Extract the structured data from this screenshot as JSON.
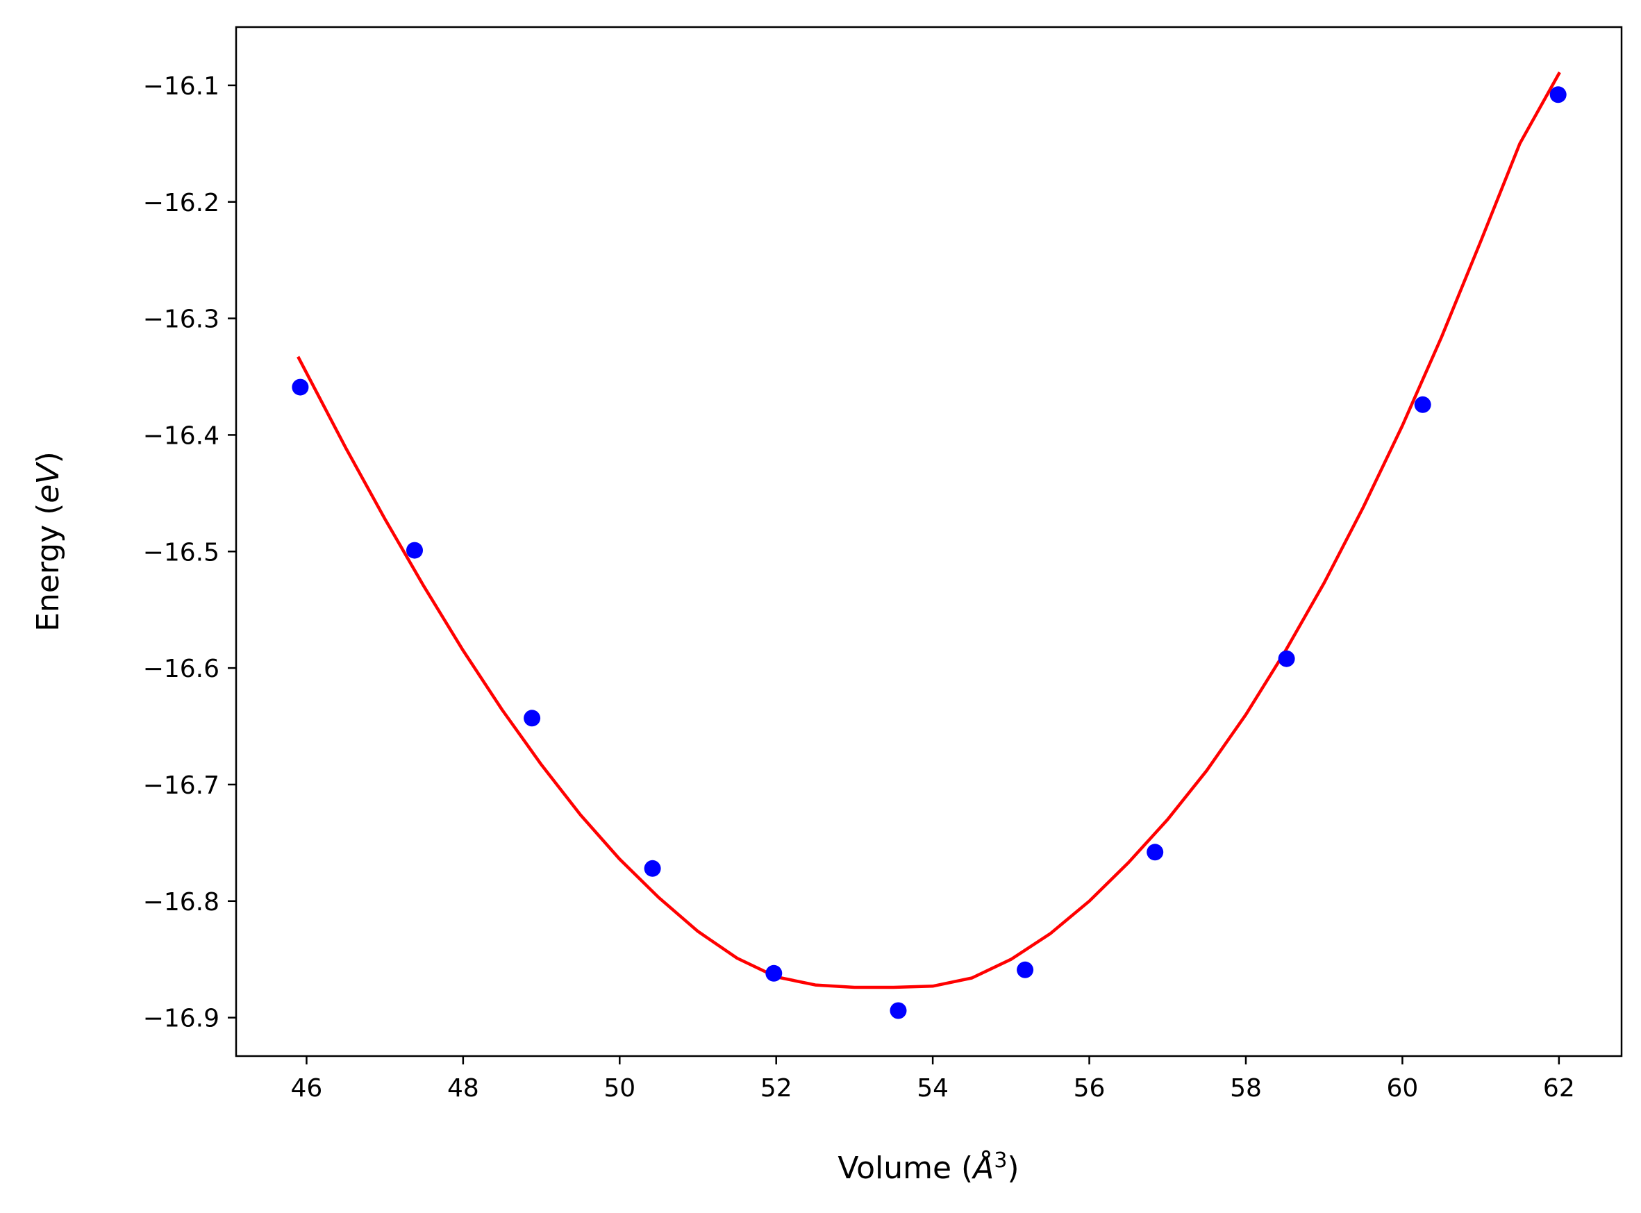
{
  "chart_data": {
    "type": "scatter",
    "title": "",
    "xlabel": {
      "prefix": "Volume (",
      "unit": "Å",
      "sup": "3",
      "suffix": ")"
    },
    "ylabel": {
      "prefix": "Energy (",
      "unit": "eV",
      "suffix": ")"
    },
    "xlim": [
      45.1,
      62.8
    ],
    "ylim": [
      -16.933,
      -16.05
    ],
    "xticks": [
      46,
      48,
      50,
      52,
      54,
      56,
      58,
      60,
      62
    ],
    "yticks": [
      -16.1,
      -16.2,
      -16.3,
      -16.4,
      -16.5,
      -16.6,
      -16.7,
      -16.8,
      -16.9
    ],
    "grid": false,
    "series": [
      {
        "kind": "points",
        "color": "#0000ff",
        "x": [
          45.92,
          47.38,
          48.88,
          50.42,
          51.97,
          53.56,
          55.18,
          56.84,
          58.52,
          60.26,
          61.99
        ],
        "y": [
          -16.359,
          -16.499,
          -16.643,
          -16.772,
          -16.862,
          -16.894,
          -16.859,
          -16.758,
          -16.592,
          -16.374,
          -16.108
        ]
      },
      {
        "kind": "line",
        "color": "#ff0000",
        "x": [
          45.9,
          46.5,
          47.0,
          47.5,
          48.0,
          48.5,
          49.0,
          49.5,
          50.0,
          50.5,
          51.0,
          51.5,
          52.0,
          52.5,
          53.0,
          53.5,
          54.0,
          54.5,
          55.0,
          55.5,
          56.0,
          56.5,
          57.0,
          57.5,
          58.0,
          58.5,
          59.0,
          59.5,
          60.0,
          60.5,
          61.0,
          61.5,
          62.0
        ],
        "y": [
          -16.334,
          -16.411,
          -16.472,
          -16.53,
          -16.585,
          -16.636,
          -16.683,
          -16.726,
          -16.764,
          -16.797,
          -16.826,
          -16.849,
          -16.865,
          -16.872,
          -16.874,
          -16.874,
          -16.873,
          -16.866,
          -16.85,
          -16.828,
          -16.8,
          -16.767,
          -16.73,
          -16.688,
          -16.64,
          -16.586,
          -16.527,
          -16.462,
          -16.392,
          -16.316,
          -16.234,
          -16.15,
          -16.09
        ]
      }
    ]
  }
}
